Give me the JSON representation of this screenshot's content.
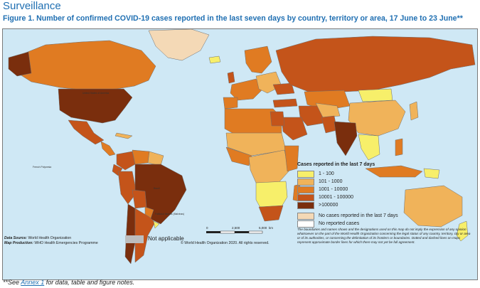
{
  "header": {
    "section_title": "Surveillance",
    "figure_title": "Figure 1. Number of confirmed COVID-19 cases reported in the last seven days by country, territory or area, 17 June to 23 June**"
  },
  "legend": {
    "title": "Cases reported in the last 7 days",
    "items": [
      {
        "label": "1 - 100",
        "color": "#f7ef6a"
      },
      {
        "label": "101 - 1000",
        "color": "#f0b35a"
      },
      {
        "label": "1001 - 10000",
        "color": "#e07b22"
      },
      {
        "label": "10001 - 100000",
        "color": "#c4541a"
      },
      {
        "label": ">100000",
        "color": "#7a2e0d"
      }
    ],
    "extra_items": [
      {
        "label": "No cases reported in the last 7 days",
        "color": "#f4d9b6"
      },
      {
        "label": "No reported cases",
        "color": "#ffffff"
      }
    ]
  },
  "not_applicable": {
    "label": "Not applicable",
    "color": "#bdbdbd"
  },
  "source": {
    "data_source_label": "Data Source:",
    "data_source": "World Health Organization",
    "map_production_label": "Map Production:",
    "map_production": "WHO Health Emergencies Programme"
  },
  "scale": {
    "labels": [
      "0",
      "2,500",
      "5,000"
    ],
    "unit": "km"
  },
  "copyright": "© World Health Organization 2020. All rights reserved.",
  "disclaimer": "The boundaries and names shown and the designations used on this map do not imply the expression of any opinion whatsoever on the part of the World Health Organization concerning the legal status of any country, territory, city or area or of its authorities, or concerning the delimitation of its frontiers or boundaries. Dotted and dashed lines on maps represent approximate border lines for which there may not yet be full agreement.",
  "footnote": {
    "prefix": "**See ",
    "link": "Annex 1",
    "suffix": " for data, table and figure notes."
  },
  "map_labels": {
    "usa": "United States of America",
    "brazil": "Brazil",
    "french_polynesia": "French Polynesia",
    "falkland": "Falkland Islands (Malvinas)"
  },
  "colors": {
    "ocean": "#cfe8f5",
    "border": "#6f6f6f"
  }
}
